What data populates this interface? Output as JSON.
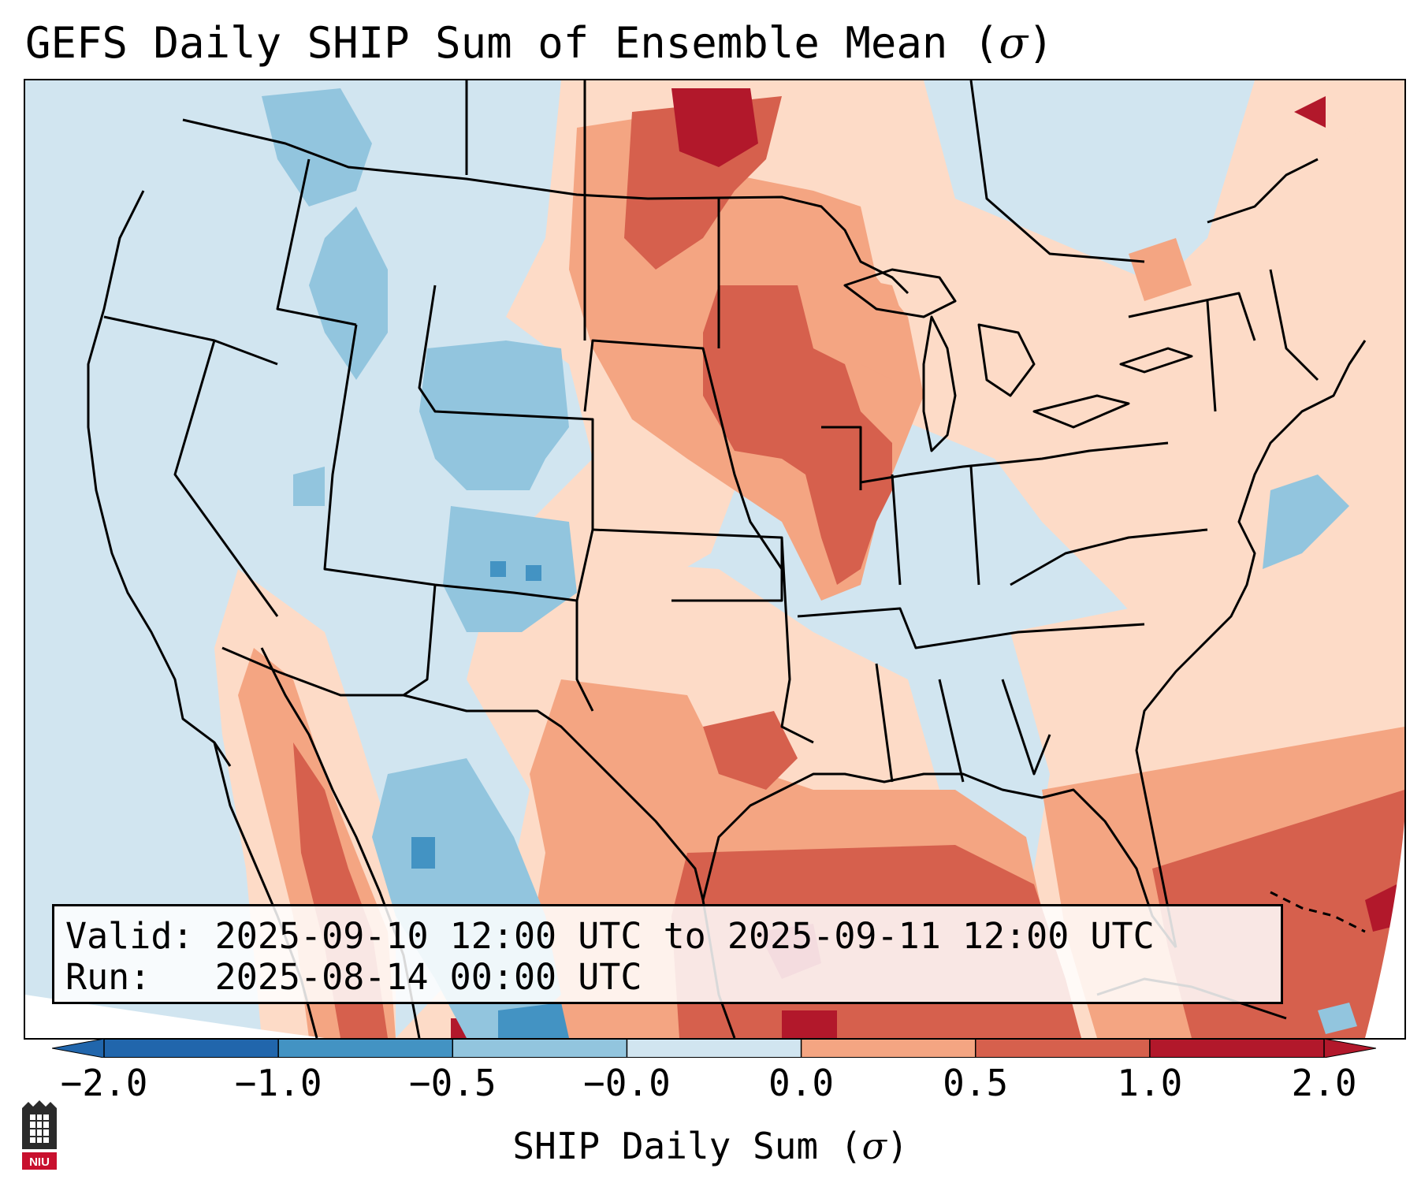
{
  "title": {
    "main": "GEFS Daily SHIP Sum of Ensemble Mean (",
    "symbol": "σ",
    "close": ")"
  },
  "info": {
    "valid": "Valid: 2025-09-10 12:00 UTC to 2025-09-11 12:00 UTC",
    "run": "Run:   2025-08-14 00:00 UTC"
  },
  "colorbar": {
    "label_main": "SHIP Daily Sum (",
    "label_symbol": "σ",
    "label_close": ")",
    "ticks": [
      "−2.0",
      "−1.0",
      "−0.5",
      "−0.0",
      "0.0",
      "0.5",
      "1.0",
      "2.0"
    ],
    "colors": [
      "#2166ac",
      "#4393c3",
      "#92c5de",
      "#d1e5f0",
      "#fddbc7",
      "#f4a582",
      "#d6604d",
      "#b2182b"
    ],
    "underflow_color": "#2166ac",
    "overflow_color": "#b2182b"
  },
  "logo": {
    "text": "NIU",
    "color": "#c8102e"
  }
}
